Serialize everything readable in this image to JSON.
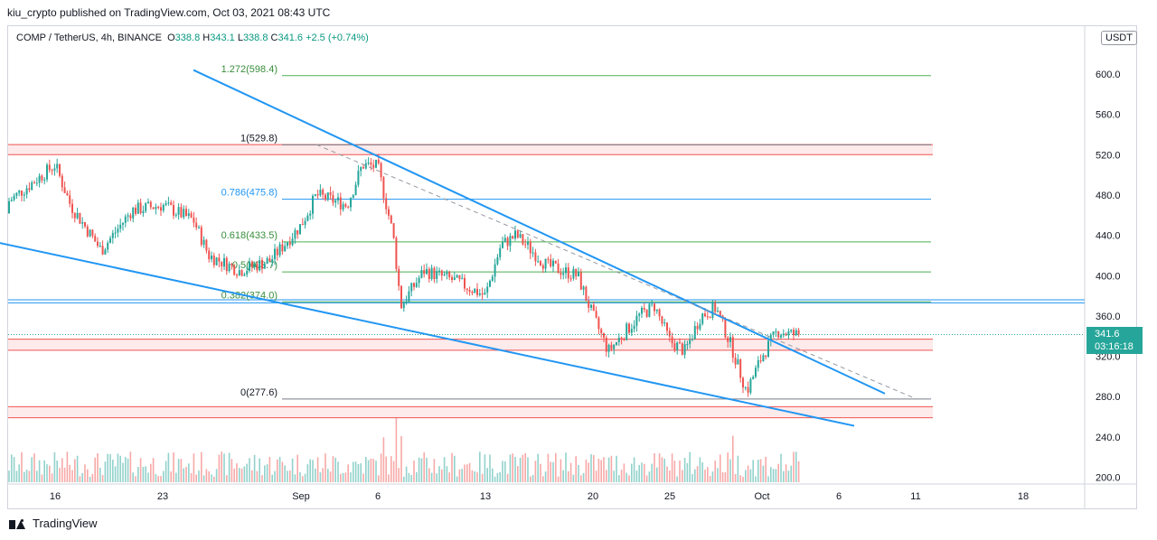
{
  "header": {
    "publisher_line": "kiu_crypto published on TradingView.com, Oct 03, 2021 08:43 UTC"
  },
  "legend": {
    "symbol": "COMP / TetherUS, 4h, BINANCE",
    "o_label": "O",
    "o": "338.8",
    "h_label": "H",
    "h": "343.1",
    "l_label": "L",
    "l": "338.8",
    "c_label": "C",
    "c": "341.6",
    "change": "+2.5 (+0.74%)"
  },
  "currency_button": "USDT",
  "last_price": {
    "price": "341.6",
    "countdown": "03:16:18"
  },
  "footer": {
    "brand": "TradingView"
  },
  "colors": {
    "up": "#26a69a",
    "down": "#ef5350",
    "trend": "#2196f3",
    "zone": "#ef5350",
    "fib_line": "#4caf50",
    "fib_text_green": "#4caf50",
    "fib_text_blue": "#2196f3"
  },
  "chart_data": {
    "type": "candlestick",
    "y_axis": {
      "ticks": [
        200.0,
        240.0,
        280.0,
        320.0,
        360.0,
        400.0,
        440.0,
        480.0,
        520.0,
        560.0,
        600.0
      ],
      "tick_labels": [
        "200.0",
        "240.0",
        "280.0",
        "320.0",
        "360.0",
        "400.0",
        "440.0",
        "480.0",
        "520.0",
        "560.0",
        "600.0"
      ],
      "ylim": [
        192,
        640
      ]
    },
    "x_axis": {
      "ticks": [
        "16",
        "23",
        "Sep",
        "6",
        "13",
        "20",
        "25",
        "Oct",
        "6",
        "11",
        "18"
      ]
    },
    "ohlc_path": [
      [
        "Aug 12",
        462
      ],
      [
        "Aug 16",
        510
      ],
      [
        "Aug 17",
        470
      ],
      [
        "Aug 19",
        425
      ],
      [
        "Aug 21",
        465
      ],
      [
        "Aug 23",
        470
      ],
      [
        "Aug 25",
        455
      ],
      [
        "Aug 26",
        420
      ],
      [
        "Aug 28",
        405
      ],
      [
        "Aug 30",
        415
      ],
      [
        "Sep 01",
        450
      ],
      [
        "Sep 02",
        480
      ],
      [
        "Sep 04",
        470
      ],
      [
        "Sep 05",
        510
      ],
      [
        "Sep 06",
        508
      ],
      [
        "Sep 07",
        440
      ],
      [
        "Sep 07 b",
        370
      ],
      [
        "Sep 09",
        405
      ],
      [
        "Sep 11",
        395
      ],
      [
        "Sep 13",
        380
      ],
      [
        "Sep 14",
        430
      ],
      [
        "Sep 15",
        440
      ],
      [
        "Sep 17",
        410
      ],
      [
        "Sep 19",
        400
      ],
      [
        "Sep 20",
        360
      ],
      [
        "Sep 21",
        325
      ],
      [
        "Sep 23",
        360
      ],
      [
        "Sep 24",
        370
      ],
      [
        "Sep 25",
        335
      ],
      [
        "Sep 26",
        325
      ],
      [
        "Sep 27",
        360
      ],
      [
        "Sep 28",
        368
      ],
      [
        "Sep 29",
        330
      ],
      [
        "Sep 30",
        285
      ],
      [
        "Oct 01",
        320
      ],
      [
        "Oct 02",
        345
      ],
      [
        "Oct 03",
        341.6
      ]
    ],
    "fibonacci": [
      {
        "label": "1.272(598.4)",
        "value": 598.4,
        "color": "green"
      },
      {
        "label": "1(529.8)",
        "value": 529.8,
        "color": "gray"
      },
      {
        "label": "0.786(475.8)",
        "value": 475.8,
        "color": "blue"
      },
      {
        "label": "0.618(433.5)",
        "value": 433.5,
        "color": "green"
      },
      {
        "label": "0.5(403.7)",
        "value": 403.7,
        "color": "green"
      },
      {
        "label": "0.382(374.0)",
        "value": 374.0,
        "color": "green"
      },
      {
        "label": "0(277.6)",
        "value": 277.6,
        "color": "gray"
      }
    ],
    "zones": [
      {
        "top": 530,
        "bottom": 520
      },
      {
        "top": 337,
        "bottom": 326
      },
      {
        "top": 270,
        "bottom": 259
      }
    ],
    "horizontal_lines": [
      376.0,
      373.0
    ],
    "trendlines": [
      {
        "from": [
          "Aug 25",
          604
        ],
        "to": [
          "Oct 09",
          283
        ]
      },
      {
        "from": [
          "Aug 11",
          437
        ],
        "to": [
          "Oct 07",
          251
        ]
      }
    ],
    "dashed_line": {
      "from": [
        "Sep 02",
        530
      ],
      "to": [
        "Oct 11",
        278
      ]
    },
    "last_price": 341.6
  }
}
